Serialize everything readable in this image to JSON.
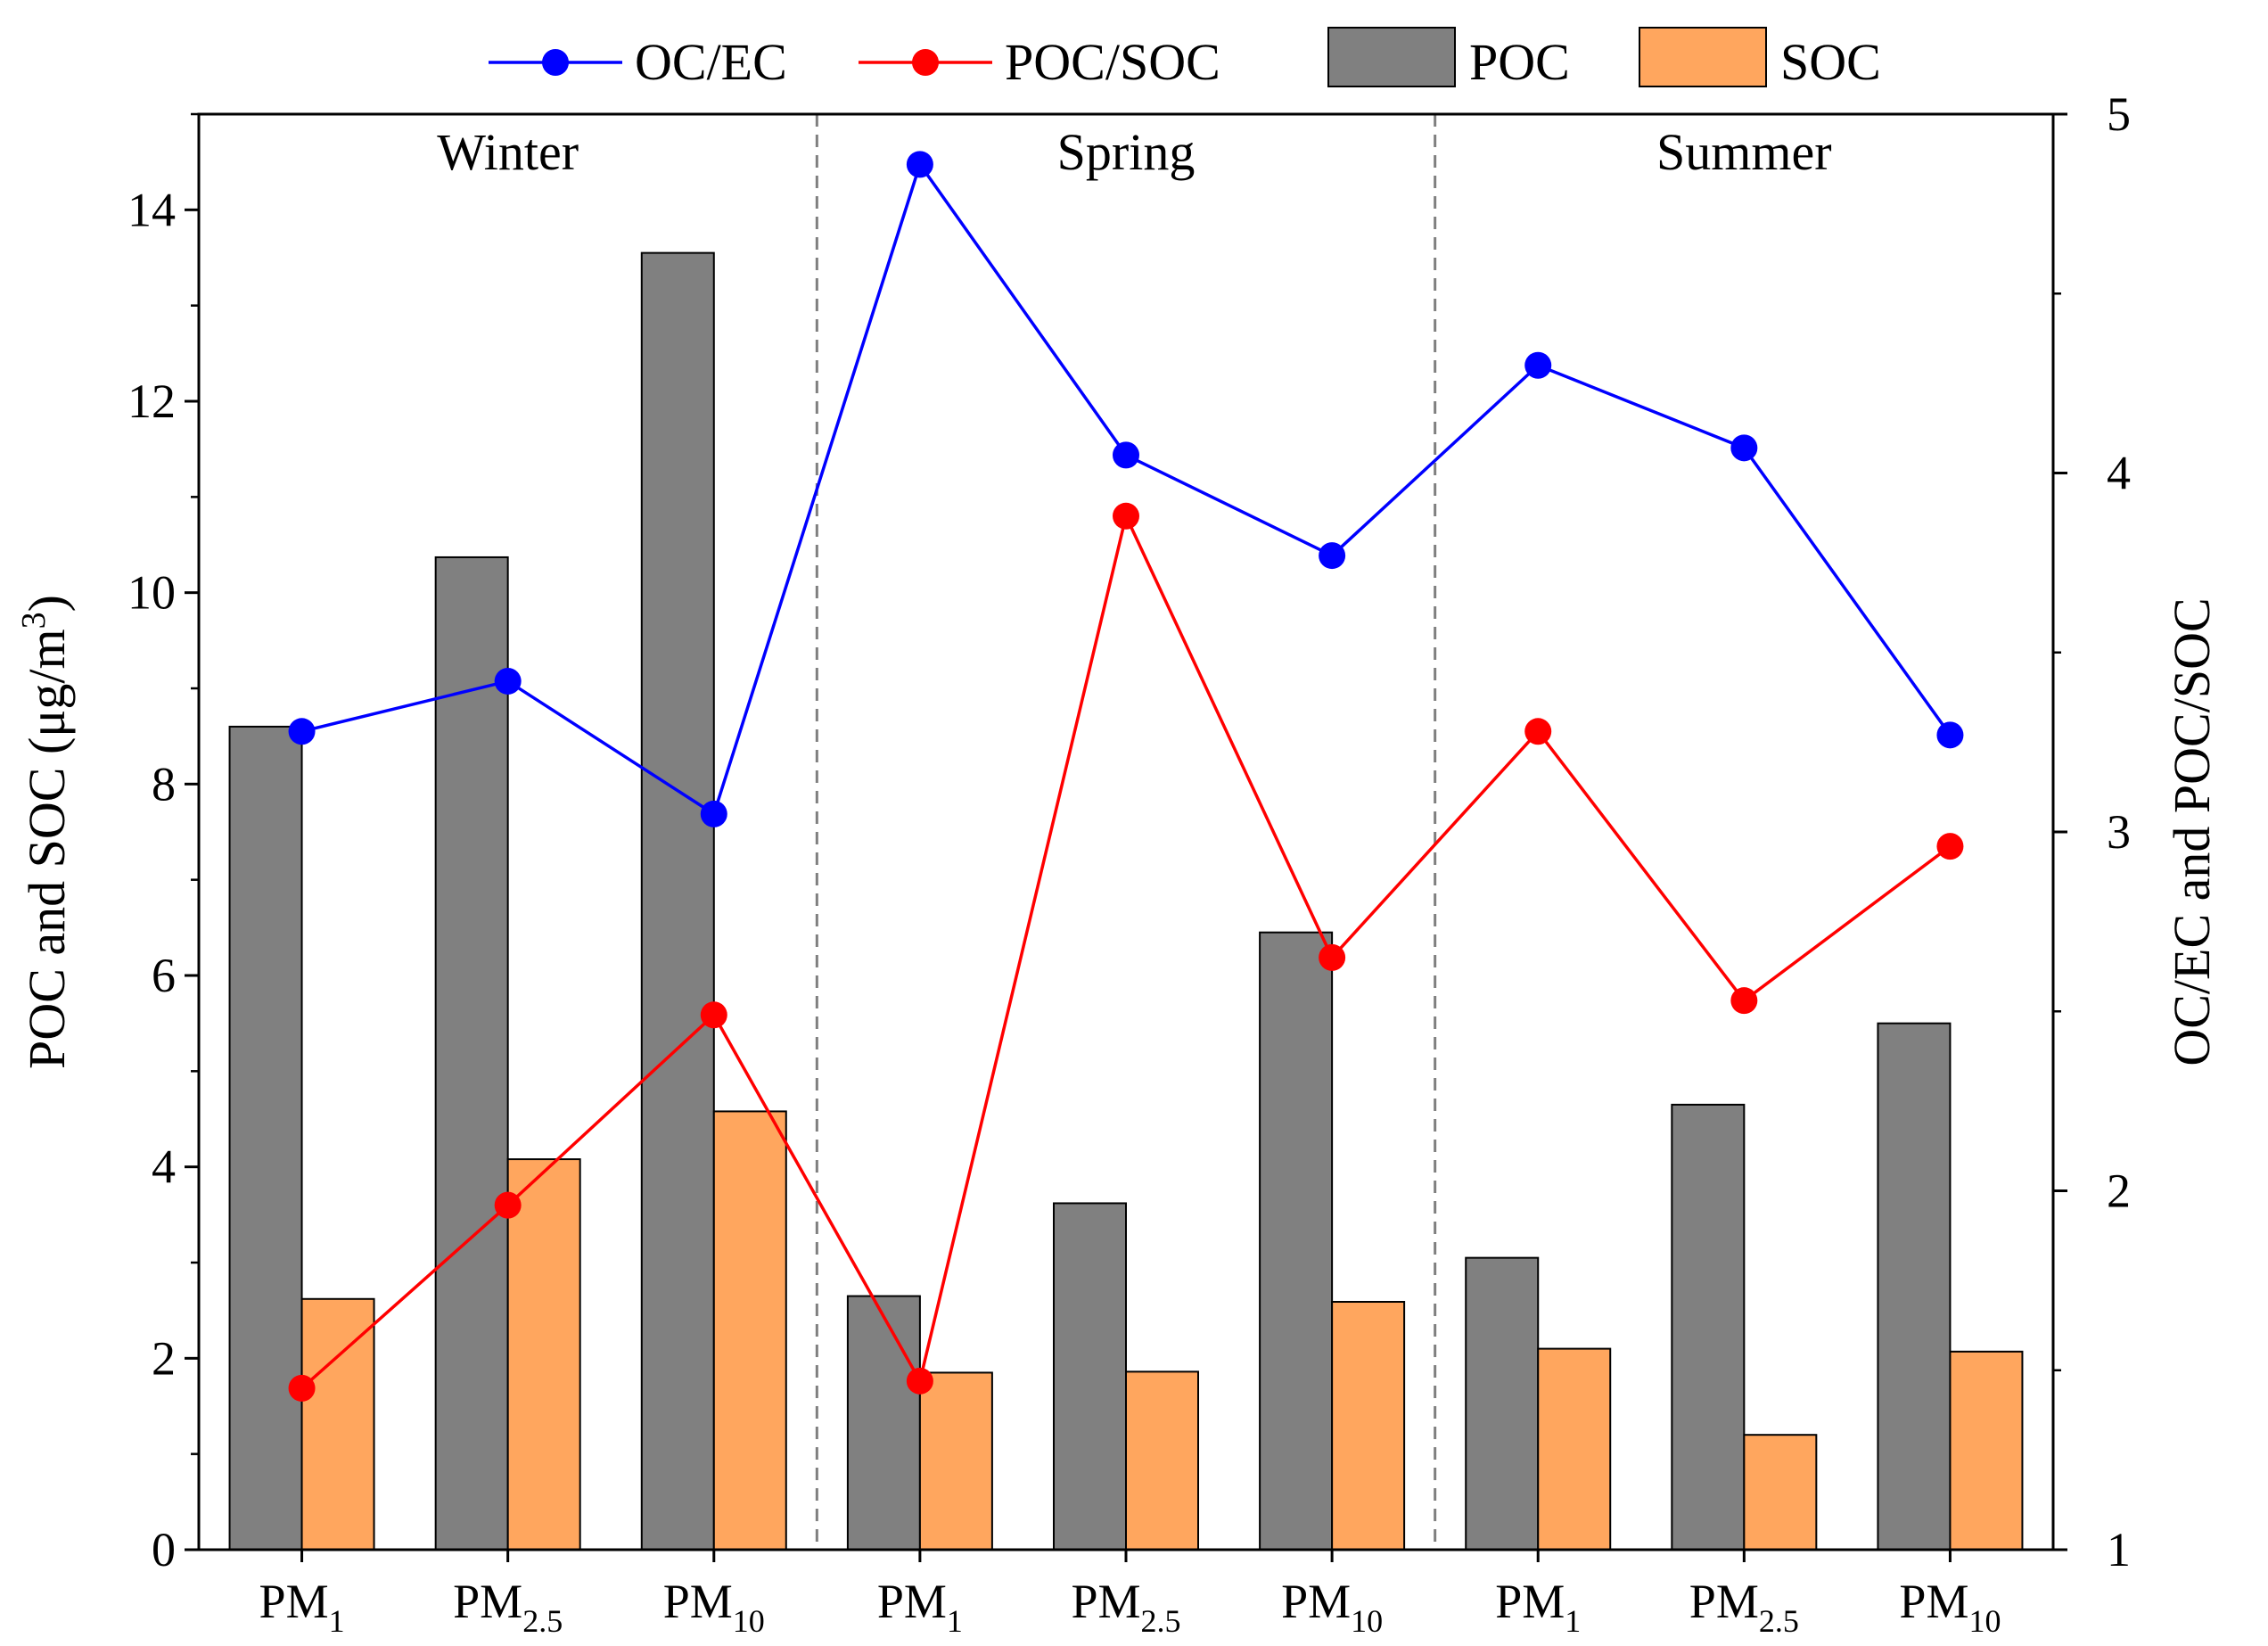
{
  "chart_data": {
    "type": "bar",
    "categories": [
      "PM1",
      "PM2.5",
      "PM10",
      "PM1",
      "PM2.5",
      "PM10",
      "PM1",
      "PM2.5",
      "PM10"
    ],
    "category_labels": [
      {
        "main": "PM",
        "sub": "1"
      },
      {
        "main": "PM",
        "sub": "2.5"
      },
      {
        "main": "PM",
        "sub": "10"
      },
      {
        "main": "PM",
        "sub": "1"
      },
      {
        "main": "PM",
        "sub": "2.5"
      },
      {
        "main": "PM",
        "sub": "10"
      },
      {
        "main": "PM",
        "sub": "1"
      },
      {
        "main": "PM",
        "sub": "2.5"
      },
      {
        "main": "PM",
        "sub": "10"
      }
    ],
    "seasons": [
      "Winter",
      "Spring",
      "Summer"
    ],
    "bar_series": [
      {
        "name": "POC",
        "color": "#808080",
        "axis": "left",
        "values": [
          8.6,
          10.37,
          13.55,
          2.65,
          3.62,
          6.45,
          3.05,
          4.65,
          5.5
        ]
      },
      {
        "name": "SOC",
        "color": "#FFA65E",
        "axis": "left",
        "values": [
          2.62,
          4.08,
          4.58,
          1.85,
          1.86,
          2.59,
          2.1,
          1.2,
          2.07
        ]
      }
    ],
    "line_series": [
      {
        "name": "OC/EC",
        "color": "#0000FF",
        "axis": "right",
        "values": [
          3.28,
          3.42,
          3.05,
          4.86,
          4.05,
          3.77,
          4.3,
          4.07,
          3.27
        ]
      },
      {
        "name": "POC/SOC",
        "color": "#FF0000",
        "axis": "right",
        "values": [
          1.45,
          1.96,
          2.49,
          1.47,
          3.88,
          2.65,
          3.28,
          2.53,
          2.96
        ]
      }
    ],
    "legend": [
      "OC/EC",
      "POC/SOC",
      "POC",
      "SOC"
    ],
    "ylabel_left": "POC and SOC (μg/m³)",
    "ylabel_left_parts": {
      "main": "POC and SOC (μg/m",
      "sup": "3",
      "end": ")"
    },
    "ylabel_right": "OC/EC and POC/SOC",
    "ylim_left": [
      0,
      15
    ],
    "ylim_right": [
      1,
      5
    ],
    "yticks_left": [
      "0",
      "2",
      "4",
      "6",
      "8",
      "10",
      "12",
      "14"
    ],
    "yticks_right": [
      "1",
      "2",
      "3",
      "4",
      "5"
    ],
    "legend_position": "top"
  }
}
